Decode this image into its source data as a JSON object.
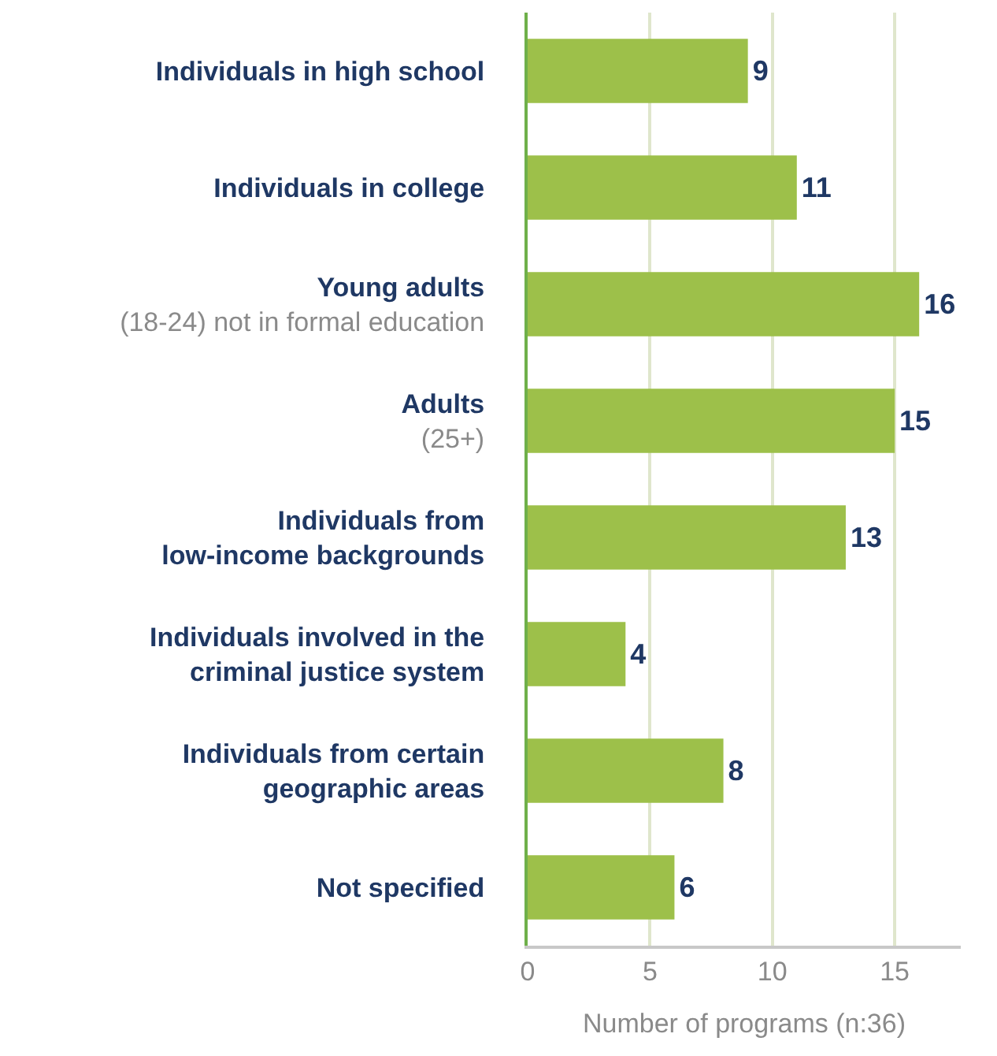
{
  "chart_data": {
    "type": "bar",
    "orientation": "horizontal",
    "categories": [
      "Individuals in high school",
      "Individuals in college",
      "Young adults\n(18-24) not in formal education",
      "Adults\n(25+)",
      "Individuals from\nlow-income backgrounds",
      "Individuals involved in the\ncriminal justice system",
      "Individuals from certain\ngeographic areas",
      "Not specified"
    ],
    "values": [
      9,
      11,
      16,
      15,
      13,
      4,
      8,
      6
    ],
    "color": "#9dc04a",
    "xlim": [
      0,
      17.7
    ],
    "xticks": [
      0,
      5,
      10,
      15
    ],
    "xlabel": "Number of programs (n:36)",
    "grid": "x",
    "data_labels": true
  }
}
